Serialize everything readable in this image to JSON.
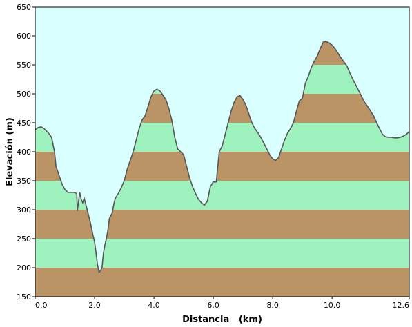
{
  "chart_data": {
    "type": "area",
    "title": "",
    "xlabel": "Distancia   (km)",
    "ylabel": "Elevación (m)",
    "xlim": [
      0,
      12.6
    ],
    "ylim": [
      150,
      650
    ],
    "x_ticks": [
      "0.0",
      "2.0",
      "4.0",
      "6.0",
      "8.0",
      "10.0",
      "12.6"
    ],
    "y_ticks": [
      "150",
      "200",
      "250",
      "300",
      "350",
      "400",
      "450",
      "500",
      "550",
      "600",
      "650"
    ],
    "grid": false,
    "band_step": 50,
    "colors": {
      "sky": "#d9ffff",
      "band_brown": "#bb9466",
      "band_green": "#9ef2be",
      "outline": "#555555",
      "frame": "#000000"
    },
    "series": [
      {
        "x": [
          0.0,
          0.1,
          0.2,
          0.3,
          0.45,
          0.55,
          0.65,
          0.7,
          0.8,
          0.9,
          1.0,
          1.1,
          1.2,
          1.3,
          1.4,
          1.42,
          1.5,
          1.55,
          1.6,
          1.65,
          1.75,
          1.8,
          1.85,
          1.9,
          1.95,
          2.0,
          2.05,
          2.1,
          2.15,
          2.2,
          2.25,
          2.3,
          2.35,
          2.4,
          2.45,
          2.5,
          2.55,
          2.6,
          2.65,
          2.7,
          2.8,
          2.9,
          3.0,
          3.05,
          3.1,
          3.2,
          3.3,
          3.4,
          3.5,
          3.6,
          3.7,
          3.8,
          3.9,
          4.0,
          4.1,
          4.2,
          4.3,
          4.4,
          4.5,
          4.6,
          4.7,
          4.8,
          4.9,
          5.0,
          5.1,
          5.2,
          5.3,
          5.4,
          5.5,
          5.6,
          5.7,
          5.8,
          5.9,
          6.0,
          6.1,
          6.2,
          6.3,
          6.4,
          6.5,
          6.6,
          6.7,
          6.8,
          6.9,
          7.0,
          7.1,
          7.2,
          7.3,
          7.4,
          7.5,
          7.6,
          7.7,
          7.8,
          7.9,
          8.0,
          8.1,
          8.2,
          8.3,
          8.4,
          8.5,
          8.6,
          8.7,
          8.8,
          8.9,
          9.0,
          9.1,
          9.2,
          9.3,
          9.4,
          9.5,
          9.6,
          9.7,
          9.8,
          9.9,
          10.0,
          10.1,
          10.2,
          10.3,
          10.4,
          10.5,
          10.6,
          10.7,
          10.8,
          10.9,
          11.0,
          11.1,
          11.2,
          11.3,
          11.4,
          11.5,
          11.6,
          11.7,
          11.8,
          11.9,
          12.0,
          12.1,
          12.2,
          12.3,
          12.4,
          12.5,
          12.6
        ],
        "y": [
          438,
          442,
          443,
          440,
          432,
          425,
          400,
          375,
          360,
          345,
          335,
          330,
          330,
          330,
          328,
          298,
          330,
          318,
          312,
          320,
          300,
          290,
          280,
          268,
          255,
          245,
          225,
          205,
          192,
          195,
          200,
          225,
          240,
          250,
          265,
          285,
          290,
          295,
          310,
          320,
          328,
          338,
          350,
          360,
          370,
          385,
          400,
          420,
          440,
          455,
          462,
          478,
          495,
          505,
          508,
          505,
          498,
          490,
          475,
          455,
          425,
          405,
          400,
          395,
          375,
          355,
          340,
          328,
          318,
          312,
          308,
          315,
          340,
          348,
          348,
          400,
          410,
          430,
          450,
          470,
          485,
          495,
          497,
          490,
          480,
          465,
          450,
          440,
          433,
          425,
          415,
          405,
          395,
          388,
          385,
          390,
          405,
          420,
          432,
          440,
          450,
          470,
          488,
          492,
          518,
          530,
          545,
          556,
          565,
          578,
          589,
          590,
          588,
          584,
          578,
          570,
          562,
          555,
          548,
          536,
          525,
          515,
          505,
          495,
          485,
          478,
          470,
          462,
          450,
          440,
          430,
          426,
          425,
          425,
          424,
          424,
          425,
          427,
          430,
          435
        ]
      }
    ]
  }
}
